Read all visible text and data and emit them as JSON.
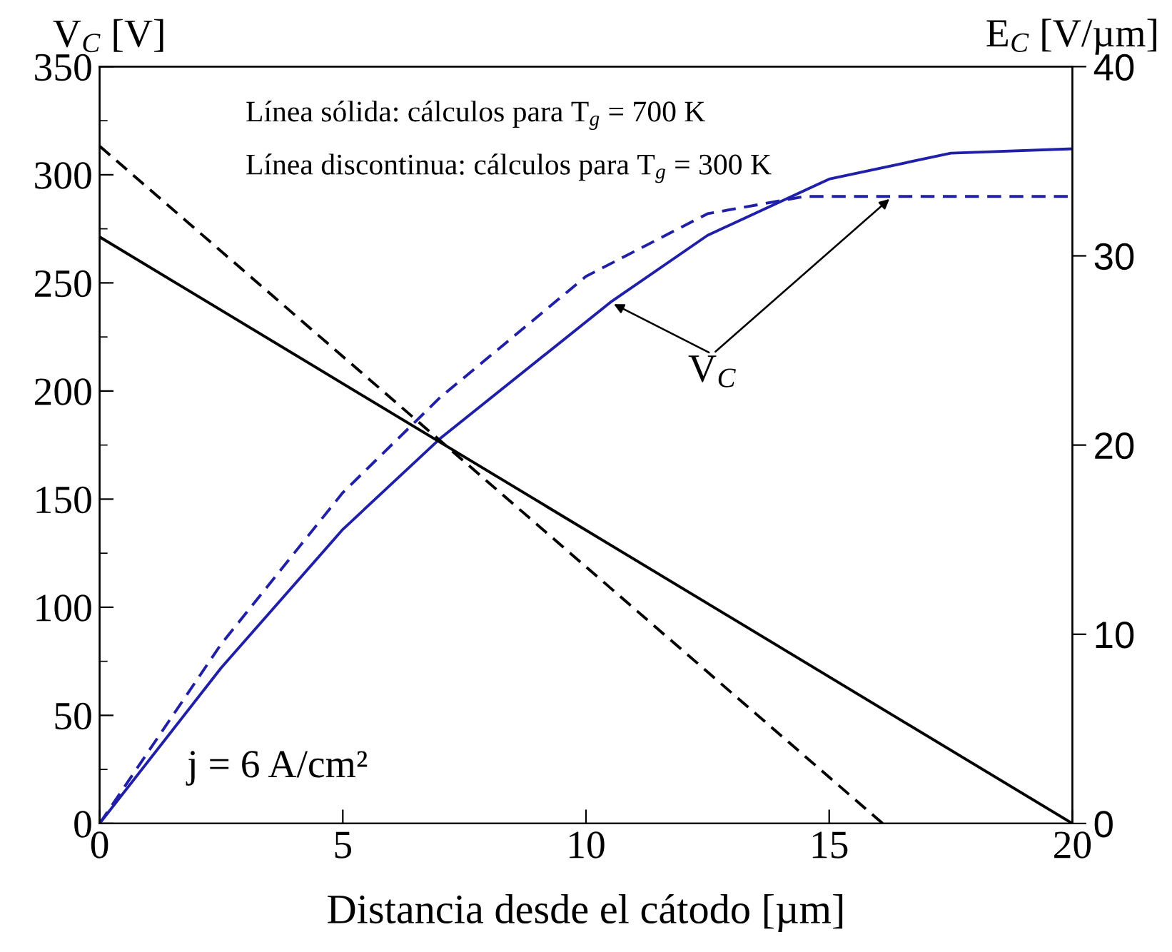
{
  "chart_data": {
    "type": "line",
    "xlabel": "Distancia desde el cátodo [µm]",
    "ylabel": "V$_{C}$ [V]",
    "y2label": "E$_{C}$ [V/µm]",
    "series": [
      {
        "color": "#1f1fa8",
        "line_style": "solid",
        "x": [
          0,
          2.5,
          5,
          7,
          10.5,
          12.5,
          15,
          17.5,
          20
        ],
        "values": [
          0,
          72,
          136,
          178,
          241,
          272,
          298,
          310,
          312
        ]
      },
      {
        "color": "#1f1fa8",
        "line_style": "dashed",
        "x": [
          0,
          2.5,
          5,
          7,
          10,
          12.5,
          14.5,
          16.3,
          20
        ],
        "values": [
          0,
          83,
          153,
          197,
          253,
          282,
          290,
          290,
          290
        ]
      },
      {
        "color": "#000000",
        "line_style": "solid",
        "axis": "y2",
        "x": [
          0,
          20
        ],
        "values": [
          31,
          0
        ]
      },
      {
        "color": "#000000",
        "line_style": "dashed",
        "axis": "y2",
        "x": [
          0,
          16.1
        ],
        "values": [
          35.8,
          0
        ]
      }
    ],
    "xlim": [
      0,
      20
    ],
    "xticks": [
      0,
      5,
      10,
      15,
      20
    ],
    "ylim": [
      0,
      350
    ],
    "yticks": [
      0,
      50,
      100,
      150,
      200,
      250,
      300,
      350
    ],
    "y2lim": [
      0,
      40
    ],
    "y2ticks": [
      0,
      10,
      20,
      30,
      40
    ],
    "grid": false,
    "legend": false,
    "marker": "none",
    "annotations": [
      "Línea sólida: cálculos para T$_{g}$ = 700 K",
      "Línea discontinua: cálculos para T$_{g}$ = 300 K",
      "j = 6 A/cm²",
      {
        "text": "V$_{C}$",
        "x": 10.5,
        "y": 241
      }
    ]
  }
}
